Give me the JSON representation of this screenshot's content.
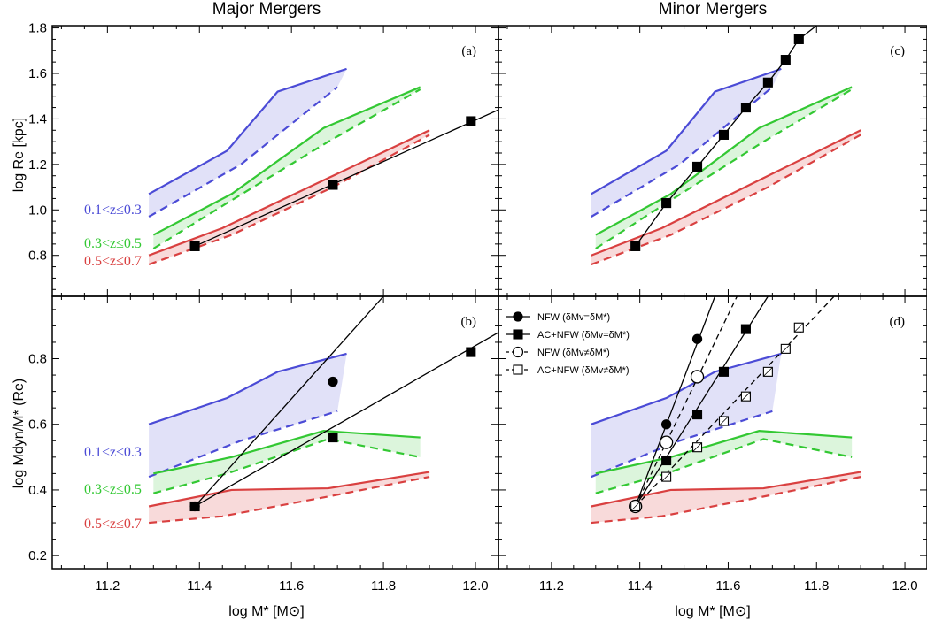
{
  "colors": {
    "low_z": "#4b4bd6",
    "low_z_fill": "#e1e1f8",
    "mid_z": "#33c833",
    "mid_z_fill": "#dcf5dc",
    "high_z": "#d94040",
    "high_z_fill": "#f8dada",
    "model": "#000000"
  },
  "columns": {
    "left_title": "Major Mergers",
    "right_title": "Minor Mergers"
  },
  "axes": {
    "xlabel": "log M* [M⊙]",
    "ylabel_top": "log Re [kpc]",
    "ylabel_bottom": "log Mdyn/M* (Re)",
    "xticks": [
      "11.2",
      "11.4",
      "11.6",
      "11.8",
      "12.0"
    ],
    "yticks_top": [
      "0.8",
      "1.0",
      "1.2",
      "1.4",
      "1.6",
      "1.8"
    ],
    "yticks_bottom": [
      "0.2",
      "0.4",
      "0.6",
      "0.8"
    ]
  },
  "chart_data": [
    {
      "type": "line",
      "panel": "(a)",
      "column": "Major Mergers",
      "xlabel": "log M* [M⊙]",
      "ylabel": "log Re [kpc]",
      "xlim": [
        11.08,
        12.05
      ],
      "ylim": [
        0.62,
        1.81
      ],
      "z_bins": [
        {
          "label": "0.1<z≤0.3",
          "color": "#4b4bd6",
          "solid_x": [
            11.29,
            11.46,
            11.57,
            11.72
          ],
          "solid_y": [
            1.07,
            1.26,
            1.52,
            1.62
          ],
          "dashed_x": [
            11.29,
            11.49,
            11.7
          ],
          "dashed_y": [
            0.97,
            1.2,
            1.54
          ]
        },
        {
          "label": "0.3<z≤0.5",
          "color": "#33c833",
          "solid_x": [
            11.3,
            11.47,
            11.67,
            11.88
          ],
          "solid_y": [
            0.89,
            1.07,
            1.36,
            1.54
          ],
          "dashed_x": [
            11.3,
            11.46,
            11.68,
            11.88
          ],
          "dashed_y": [
            0.83,
            1.03,
            1.3,
            1.53
          ]
        },
        {
          "label": "0.5<z≤0.7",
          "color": "#d94040",
          "solid_x": [
            11.29,
            11.45,
            11.68,
            11.9
          ],
          "solid_y": [
            0.8,
            0.92,
            1.14,
            1.35
          ],
          "dashed_x": [
            11.29,
            11.47,
            11.69,
            11.9
          ],
          "dashed_y": [
            0.76,
            0.89,
            1.1,
            1.33
          ]
        }
      ],
      "models": [
        {
          "name": "",
          "marker": "square",
          "filled": true,
          "dash": false,
          "x": [
            11.39,
            11.69,
            11.99
          ],
          "y": [
            0.84,
            1.11,
            1.39
          ],
          "line_x": [
            11.39,
            12.05
          ],
          "line_y": [
            0.84,
            1.44
          ]
        }
      ]
    },
    {
      "type": "line",
      "panel": "(b)",
      "column": "Major Mergers",
      "xlabel": "log M* [M⊙]",
      "ylabel": "log Mdyn/M* (Re)",
      "xlim": [
        11.08,
        12.05
      ],
      "ylim": [
        0.16,
        0.99
      ],
      "z_bins": [
        {
          "label": "0.1<z≤0.3",
          "color": "#4b4bd6",
          "solid_x": [
            11.29,
            11.46,
            11.57,
            11.72
          ],
          "solid_y": [
            0.6,
            0.68,
            0.76,
            0.815
          ],
          "dashed_x": [
            11.29,
            11.49,
            11.7
          ],
          "dashed_y": [
            0.44,
            0.55,
            0.64
          ]
        },
        {
          "label": "0.3<z≤0.5",
          "color": "#33c833",
          "solid_x": [
            11.3,
            11.47,
            11.67,
            11.88
          ],
          "solid_y": [
            0.45,
            0.5,
            0.58,
            0.56
          ],
          "dashed_x": [
            11.3,
            11.46,
            11.68,
            11.88
          ],
          "dashed_y": [
            0.39,
            0.45,
            0.555,
            0.5
          ]
        },
        {
          "label": "0.5<z≤0.7",
          "color": "#d94040",
          "solid_x": [
            11.29,
            11.47,
            11.68,
            11.9
          ],
          "solid_y": [
            0.35,
            0.4,
            0.405,
            0.455
          ],
          "dashed_x": [
            11.29,
            11.45,
            11.68,
            11.9
          ],
          "dashed_y": [
            0.3,
            0.32,
            0.38,
            0.44
          ]
        }
      ],
      "models": [
        {
          "name": "",
          "marker": "circle",
          "filled": true,
          "dash": false,
          "x": [
            11.39,
            11.69
          ],
          "y": [
            0.35,
            0.73
          ],
          "line_x": [
            11.39,
            11.8
          ],
          "line_y": [
            0.35,
            0.99
          ]
        },
        {
          "name": "",
          "marker": "square",
          "filled": true,
          "dash": false,
          "x": [
            11.39,
            11.69,
            11.99
          ],
          "y": [
            0.35,
            0.56,
            0.82
          ],
          "line_x": [
            11.39,
            12.05
          ],
          "line_y": [
            0.35,
            0.88
          ]
        }
      ]
    },
    {
      "type": "line",
      "panel": "(c)",
      "column": "Minor Mergers",
      "xlabel": "log M* [M⊙]",
      "ylabel": "log Re [kpc]",
      "xlim": [
        11.08,
        12.05
      ],
      "ylim": [
        0.62,
        1.81
      ],
      "z_bins": [
        {
          "label": "0.1<z≤0.3",
          "color": "#4b4bd6",
          "solid_x": [
            11.29,
            11.46,
            11.57,
            11.72
          ],
          "solid_y": [
            1.07,
            1.26,
            1.52,
            1.62
          ],
          "dashed_x": [
            11.29,
            11.49,
            11.7
          ],
          "dashed_y": [
            0.97,
            1.2,
            1.54
          ]
        },
        {
          "label": "0.3<z≤0.5",
          "color": "#33c833",
          "solid_x": [
            11.3,
            11.47,
            11.67,
            11.88
          ],
          "solid_y": [
            0.89,
            1.07,
            1.36,
            1.54
          ],
          "dashed_x": [
            11.3,
            11.46,
            11.68,
            11.88
          ],
          "dashed_y": [
            0.83,
            1.03,
            1.3,
            1.53
          ]
        },
        {
          "label": "0.5<z≤0.7",
          "color": "#d94040",
          "solid_x": [
            11.29,
            11.45,
            11.68,
            11.9
          ],
          "solid_y": [
            0.8,
            0.92,
            1.14,
            1.35
          ],
          "dashed_x": [
            11.29,
            11.47,
            11.69,
            11.9
          ],
          "dashed_y": [
            0.76,
            0.89,
            1.1,
            1.33
          ]
        }
      ],
      "models": [
        {
          "name": "",
          "marker": "square",
          "filled": true,
          "dash": false,
          "x": [
            11.39,
            11.46,
            11.53,
            11.59,
            11.64,
            11.69,
            11.73,
            11.76
          ],
          "y": [
            0.84,
            1.03,
            1.19,
            1.33,
            1.45,
            1.56,
            1.66,
            1.75
          ],
          "line_x": [
            11.39,
            11.46,
            11.53,
            11.59,
            11.64,
            11.69,
            11.73,
            11.76,
            11.8
          ],
          "line_y": [
            0.84,
            1.03,
            1.19,
            1.33,
            1.45,
            1.56,
            1.66,
            1.75,
            1.81
          ]
        }
      ]
    },
    {
      "type": "line",
      "panel": "(d)",
      "column": "Minor Mergers",
      "xlabel": "log M* [M⊙]",
      "ylabel": "log Mdyn/M* (Re)",
      "xlim": [
        11.08,
        12.05
      ],
      "ylim": [
        0.16,
        0.99
      ],
      "z_bins": [
        {
          "label": "",
          "color": "#4b4bd6",
          "solid_x": [
            11.29,
            11.46,
            11.57,
            11.72
          ],
          "solid_y": [
            0.6,
            0.68,
            0.76,
            0.815
          ],
          "dashed_x": [
            11.29,
            11.49,
            11.7
          ],
          "dashed_y": [
            0.44,
            0.55,
            0.64
          ]
        },
        {
          "label": "",
          "color": "#33c833",
          "solid_x": [
            11.3,
            11.47,
            11.67,
            11.88
          ],
          "solid_y": [
            0.45,
            0.5,
            0.58,
            0.56
          ],
          "dashed_x": [
            11.3,
            11.46,
            11.68,
            11.88
          ],
          "dashed_y": [
            0.39,
            0.45,
            0.555,
            0.5
          ]
        },
        {
          "label": "",
          "color": "#d94040",
          "solid_x": [
            11.29,
            11.47,
            11.68,
            11.9
          ],
          "solid_y": [
            0.35,
            0.4,
            0.405,
            0.455
          ],
          "dashed_x": [
            11.29,
            11.45,
            11.68,
            11.9
          ],
          "dashed_y": [
            0.3,
            0.32,
            0.38,
            0.44
          ]
        }
      ],
      "models": [
        {
          "name": "NFW (δMv=δM*)",
          "marker": "circle",
          "filled": true,
          "dash": false,
          "x": [
            11.39,
            11.46,
            11.53
          ],
          "y": [
            0.35,
            0.6,
            0.86
          ],
          "line_x": [
            11.39,
            11.57
          ],
          "line_y": [
            0.35,
            0.99
          ]
        },
        {
          "name": "AC+NFW (δMv=δM*)",
          "marker": "square",
          "filled": true,
          "dash": false,
          "x": [
            11.39,
            11.46,
            11.53,
            11.59,
            11.64
          ],
          "y": [
            0.35,
            0.49,
            0.63,
            0.76,
            0.89
          ],
          "line_x": [
            11.39,
            11.69
          ],
          "line_y": [
            0.35,
            0.99
          ]
        },
        {
          "name": "NFW (δMv≠δM*)",
          "marker": "circle",
          "filled": false,
          "dash": true,
          "x": [
            11.39,
            11.46,
            11.53
          ],
          "y": [
            0.35,
            0.545,
            0.745
          ],
          "line_x": [
            11.39,
            11.62
          ],
          "line_y": [
            0.35,
            0.99
          ]
        },
        {
          "name": "AC+NFW (δMv≠δM*)",
          "marker": "square",
          "filled": false,
          "dash": true,
          "x": [
            11.39,
            11.46,
            11.53,
            11.59,
            11.64,
            11.69,
            11.73,
            11.76
          ],
          "y": [
            0.35,
            0.44,
            0.53,
            0.61,
            0.685,
            0.76,
            0.83,
            0.895
          ],
          "line_x": [
            11.39,
            11.84
          ],
          "line_y": [
            0.35,
            0.99
          ]
        }
      ]
    }
  ]
}
